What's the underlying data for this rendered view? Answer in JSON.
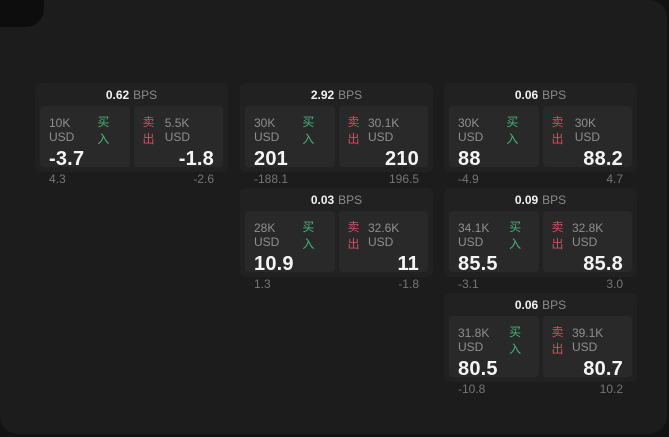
{
  "labels": {
    "bps_unit": "BPS",
    "buy": "买入",
    "sell": "卖出"
  },
  "colors": {
    "buy": "#46b478",
    "sell": "#cf4f62",
    "page_bg": "#1c1c1c",
    "card_bg": "#212121",
    "panel_bg": "#292929"
  },
  "cards": [
    {
      "bps": "0.62",
      "buy": {
        "size": "10K USD",
        "price": "-3.7",
        "change": "4.3"
      },
      "sell": {
        "size": "5.5K USD",
        "price": "-1.8",
        "change": "-2.6"
      }
    },
    {
      "bps": "2.92",
      "buy": {
        "size": "30K USD",
        "price": "201",
        "change": "-188.1"
      },
      "sell": {
        "size": "30.1K USD",
        "price": "210",
        "change": "196.5"
      }
    },
    {
      "bps": "0.06",
      "buy": {
        "size": "30K USD",
        "price": "88",
        "change": "-4.9"
      },
      "sell": {
        "size": "30K USD",
        "price": "88.2",
        "change": "4.7"
      }
    },
    {
      "bps": "0.03",
      "buy": {
        "size": "28K USD",
        "price": "10.9",
        "change": "1.3"
      },
      "sell": {
        "size": "32.6K USD",
        "price": "11",
        "change": "-1.8"
      }
    },
    {
      "bps": "0.09",
      "buy": {
        "size": "34.1K USD",
        "price": "85.5",
        "change": "-3.1"
      },
      "sell": {
        "size": "32.8K USD",
        "price": "85.8",
        "change": "3.0"
      }
    },
    {
      "bps": "0.06",
      "buy": {
        "size": "31.8K USD",
        "price": "80.5",
        "change": "-10.8"
      },
      "sell": {
        "size": "39.1K USD",
        "price": "80.7",
        "change": "10.2"
      }
    }
  ]
}
